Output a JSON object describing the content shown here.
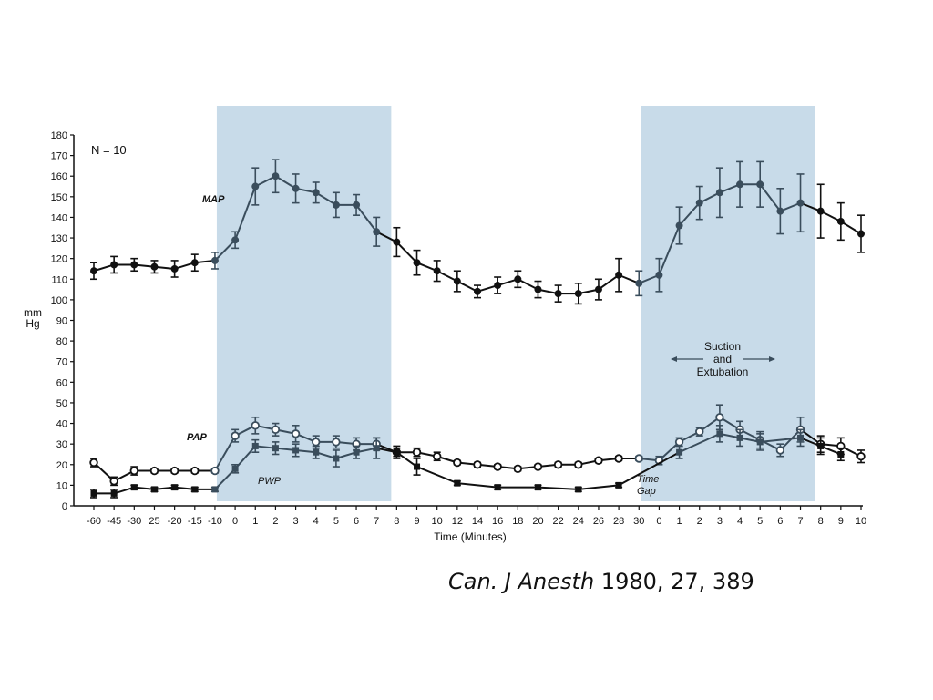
{
  "chart_data": {
    "type": "line",
    "xlabel": "Time (Minutes)",
    "ylabel": "mm Hg",
    "ylim": [
      0,
      180
    ],
    "ytick_step": 10,
    "yticks": [
      "0",
      "10",
      "20",
      "30",
      "40",
      "50",
      "60",
      "70",
      "80",
      "90",
      "100",
      "110",
      "120",
      "130",
      "140",
      "150",
      "160",
      "170",
      "180"
    ],
    "x_tick_labels": [
      "-60",
      "-45",
      "-30",
      "25",
      "-20",
      "-15",
      "-10",
      "0",
      "1",
      "2",
      "3",
      "4",
      "5",
      "6",
      "7",
      "8",
      "9",
      "10",
      "12",
      "14",
      "16",
      "18",
      "20",
      "22",
      "24",
      "26",
      "28",
      "30",
      "0",
      "1",
      "2",
      "3",
      "4",
      "5",
      "6",
      "7",
      "8",
      "9",
      "10"
    ],
    "n_label": "N = 10",
    "shaded_regions": [
      {
        "from": "-10",
        "to": "8"
      },
      {
        "from": "30",
        "to": "8"
      }
    ],
    "annotation": [
      "Suction",
      "and",
      "Extubation"
    ],
    "series": [
      {
        "name": "MAP",
        "marker": "filled-circle",
        "values": [
          114,
          117,
          117,
          116,
          115,
          118,
          119,
          129,
          155,
          160,
          154,
          152,
          146,
          146,
          133,
          128,
          118,
          114,
          109,
          104,
          107,
          110,
          105,
          103,
          103,
          105,
          112,
          108,
          112,
          136,
          147,
          152,
          156,
          156,
          143,
          147,
          143,
          138,
          132
        ],
        "errors": [
          4,
          4,
          3,
          3,
          4,
          4,
          4,
          4,
          9,
          8,
          7,
          5,
          6,
          5,
          7,
          7,
          6,
          5,
          5,
          3,
          4,
          4,
          4,
          4,
          5,
          5,
          8,
          6,
          8,
          9,
          8,
          12,
          11,
          11,
          11,
          14,
          13,
          9,
          9
        ]
      },
      {
        "name": "PAP",
        "marker": "open-circle",
        "values": [
          21,
          12,
          17,
          17,
          17,
          17,
          17,
          34,
          39,
          37,
          35,
          31,
          31,
          30,
          30,
          26,
          26,
          24,
          21,
          20,
          19,
          18,
          19,
          20,
          20,
          22,
          23,
          23,
          22,
          31,
          36,
          43,
          37,
          32,
          27,
          37,
          30,
          29,
          24
        ],
        "errors": [
          2,
          2,
          2,
          1,
          1,
          1,
          1,
          3,
          4,
          3,
          4,
          3,
          3,
          3,
          3,
          2,
          2,
          2,
          1,
          1,
          1,
          1,
          1,
          1,
          1,
          1,
          1,
          1,
          2,
          2,
          2,
          6,
          4,
          4,
          3,
          6,
          4,
          4,
          3
        ]
      },
      {
        "name": "PWP",
        "marker": "filled-square",
        "values": [
          6,
          6,
          9,
          8,
          9,
          8,
          8,
          18,
          29,
          28,
          27,
          26,
          23,
          26,
          28,
          26,
          19,
          null,
          11,
          null,
          9,
          null,
          9,
          null,
          8,
          null,
          10,
          null,
          null,
          26,
          null,
          35,
          33,
          31,
          null,
          33,
          29,
          25,
          null
        ],
        "errors": [
          2,
          2,
          1,
          1,
          1,
          1,
          1,
          2,
          3,
          3,
          3,
          3,
          4,
          3,
          5,
          3,
          4,
          null,
          1,
          null,
          1,
          null,
          1,
          null,
          1,
          null,
          1,
          null,
          null,
          3,
          null,
          4,
          4,
          4,
          null,
          4,
          4,
          3,
          null
        ]
      }
    ],
    "series_labels": {
      "MAP": "MAP",
      "PAP": "PAP",
      "PWP": "PWP"
    },
    "gap_label": [
      "Time",
      "Gap"
    ]
  },
  "citation": {
    "journal": "Can. J Anesth",
    "details": " 1980, 27, 389"
  },
  "colors": {
    "shade": "#c8dbe9",
    "ink": "#111111",
    "ink_in_shade": "#3a4d5c"
  }
}
